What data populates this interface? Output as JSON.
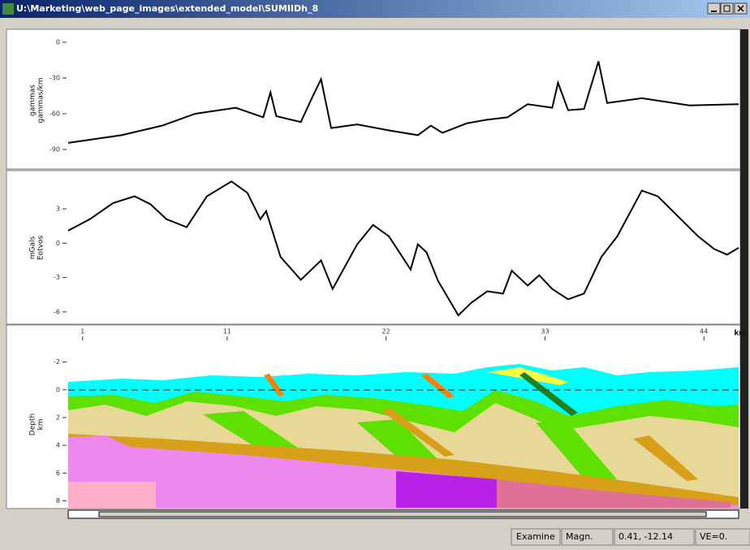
{
  "window": {
    "title": "U:\\Marketing\\web_page_images\\extended_model\\SUMIIDh_8"
  },
  "chart_data": [
    {
      "type": "line",
      "y_label": [
        "gammas",
        "gammas/km"
      ],
      "ylim": [
        -105.7,
        8.2
      ],
      "yticks": [
        0,
        -30,
        -60,
        -90
      ],
      "xlim": [
        0,
        46.4
      ],
      "color": "#000000",
      "x": [
        0,
        3.7,
        6.5,
        8.8,
        11.6,
        13.5,
        14,
        14.4,
        16.1,
        16.9,
        17.5,
        18.2,
        20,
        22.2,
        24.2,
        25.1,
        25.9,
        27.6,
        29,
        30.4,
        31.8,
        33.5,
        33.9,
        34.6,
        35.7,
        36.7,
        37.3,
        39.7,
        43,
        46.4
      ],
      "values": [
        -84.5,
        -78,
        -70,
        -60,
        -55,
        -63,
        -42,
        -62,
        -67,
        -46,
        -31,
        -72,
        -69,
        -74,
        -78,
        -70,
        -76,
        -68,
        -65,
        -63,
        -52,
        -55,
        -34,
        -57,
        -56,
        -16,
        -51,
        -47,
        -53,
        -52
      ]
    },
    {
      "type": "line",
      "y_label": [
        "mGals",
        "Eotvos"
      ],
      "ylim": [
        -7,
        6.2
      ],
      "yticks": [
        3,
        0,
        -3,
        -6
      ],
      "xlim": [
        0,
        46.4
      ],
      "color": "#000000",
      "x": [
        0,
        1.5,
        3.1,
        4.6,
        5.7,
        6.8,
        8.2,
        9.6,
        11.3,
        12.4,
        13.3,
        13.7,
        14.7,
        16.1,
        17.5,
        18.3,
        20,
        21.1,
        22.2,
        23.7,
        24.2,
        24.8,
        25.6,
        27,
        27.9,
        29,
        30.1,
        30.7,
        31.8,
        32.6,
        33.5,
        34.6,
        35.7,
        36.9,
        38,
        39.7,
        40.8,
        43.6,
        44.7,
        45.6,
        46.4
      ],
      "values": [
        1.1,
        2.1,
        3.5,
        4.1,
        3.4,
        2.1,
        1.4,
        4.1,
        5.4,
        4.4,
        2.1,
        2.8,
        -1.2,
        -3.2,
        -1.5,
        -4.0,
        -0.1,
        1.6,
        0.6,
        -2.3,
        -0.1,
        -0.8,
        -3.3,
        -6.3,
        -5.2,
        -4.2,
        -4.4,
        -2.4,
        -3.7,
        -2.8,
        -4.0,
        -4.9,
        -4.4,
        -1.2,
        0.6,
        4.6,
        4.1,
        0.6,
        -0.5,
        -1.0,
        -0.4
      ]
    }
  ],
  "section": {
    "y_label": [
      "Depth",
      "km"
    ],
    "ylim": [
      -3.5,
      8.5
    ],
    "yticks": [
      -2,
      0,
      2,
      4,
      6,
      8
    ],
    "xlim": [
      0,
      46.4
    ],
    "xticks": [
      1,
      11,
      22,
      33,
      44
    ],
    "x_unit": "km"
  },
  "status": [
    "Examine",
    "Magn.",
    "0.41, -12.14",
    "VE=0."
  ]
}
